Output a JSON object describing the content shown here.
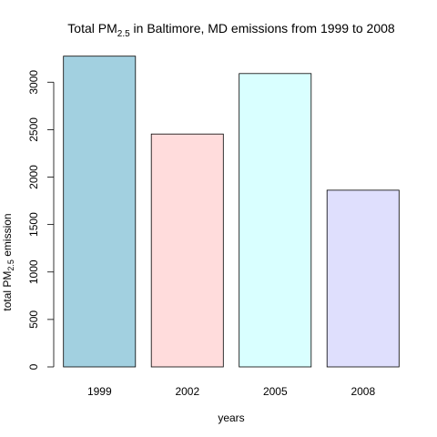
{
  "chart_data": {
    "type": "bar",
    "title": {
      "prefix": "Total PM",
      "subscript": "2.5",
      "suffix": " in Baltimore, MD emissions from 1999 to 2008"
    },
    "xlabel": "years",
    "ylabel": {
      "prefix": "total PM",
      "subscript": "2.5",
      "suffix": " emission"
    },
    "categories": [
      "1999",
      "2002",
      "2005",
      "2008"
    ],
    "values": [
      3274,
      2454,
      3091,
      1862
    ],
    "colors": [
      "#a2d0e0",
      "#ffdcdc",
      "#d9ffff",
      "#dfdffd"
    ],
    "ylim": [
      0,
      3300
    ],
    "yticks": [
      0,
      500,
      1000,
      1500,
      2000,
      2500,
      3000
    ],
    "grid": false,
    "legend": "none"
  }
}
